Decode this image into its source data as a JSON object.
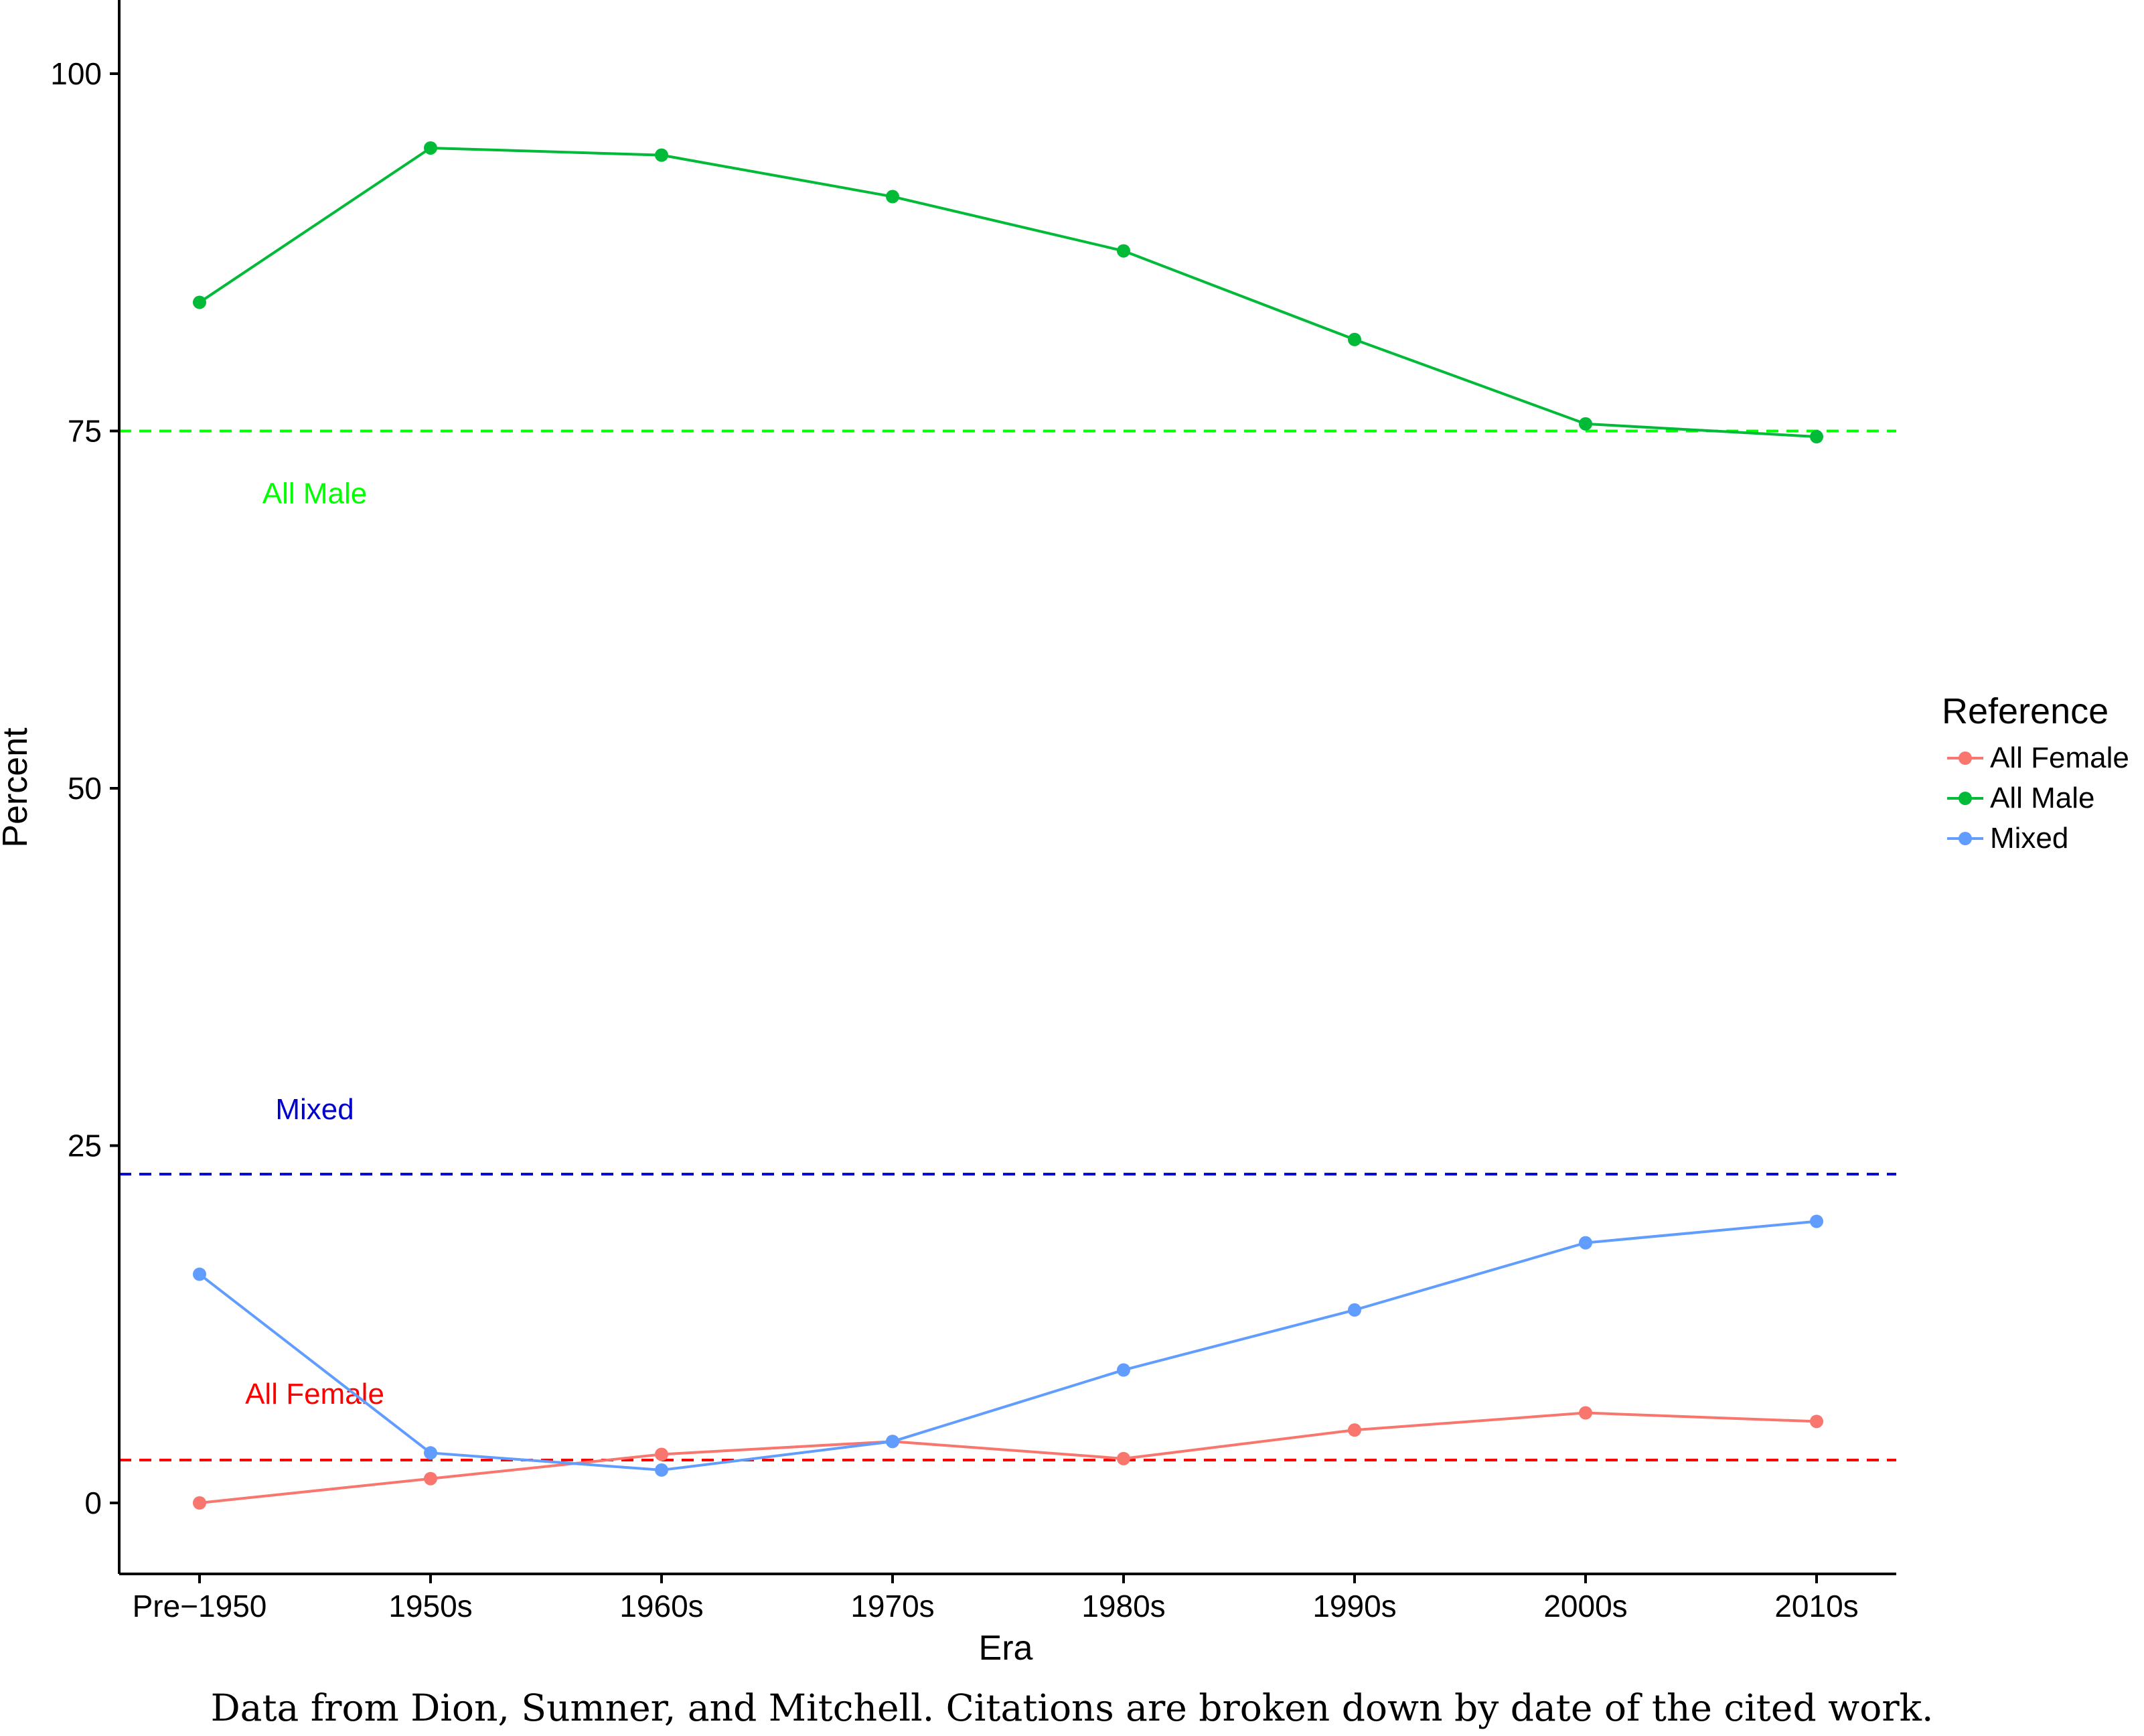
{
  "chart_data": {
    "type": "line",
    "categories": [
      "Pre−1950",
      "1950s",
      "1960s",
      "1970s",
      "1980s",
      "1990s",
      "2000s",
      "2010s"
    ],
    "series": [
      {
        "name": "All Female",
        "color": "#F8766D",
        "values": [
          0.0,
          1.7,
          3.4,
          4.3,
          3.1,
          5.1,
          6.3,
          5.7
        ]
      },
      {
        "name": "All Male",
        "color": "#00BA38",
        "values": [
          84.0,
          94.8,
          94.3,
          91.4,
          87.6,
          81.4,
          75.5,
          74.6
        ]
      },
      {
        "name": "Mixed",
        "color": "#619CFF",
        "values": [
          16.0,
          3.5,
          2.3,
          4.3,
          9.3,
          13.5,
          18.2,
          19.7
        ]
      }
    ],
    "reference_lines": [
      {
        "label": "All Male",
        "value": 75,
        "color": "#00FF00"
      },
      {
        "label": "Mixed",
        "value": 23,
        "color": "#0000CD"
      },
      {
        "label": "All Female",
        "value": 3,
        "color": "#FF0000"
      }
    ],
    "xlabel": "Era",
    "ylabel": "Percent",
    "yticks": [
      0,
      25,
      50,
      75,
      100
    ],
    "ylim": [
      -5,
      105
    ],
    "grid": false,
    "legend": {
      "title": "Reference",
      "position": "right"
    }
  },
  "caption": "Data from Dion, Sumner, and Mitchell.  Citations are broken down by date of the cited work."
}
